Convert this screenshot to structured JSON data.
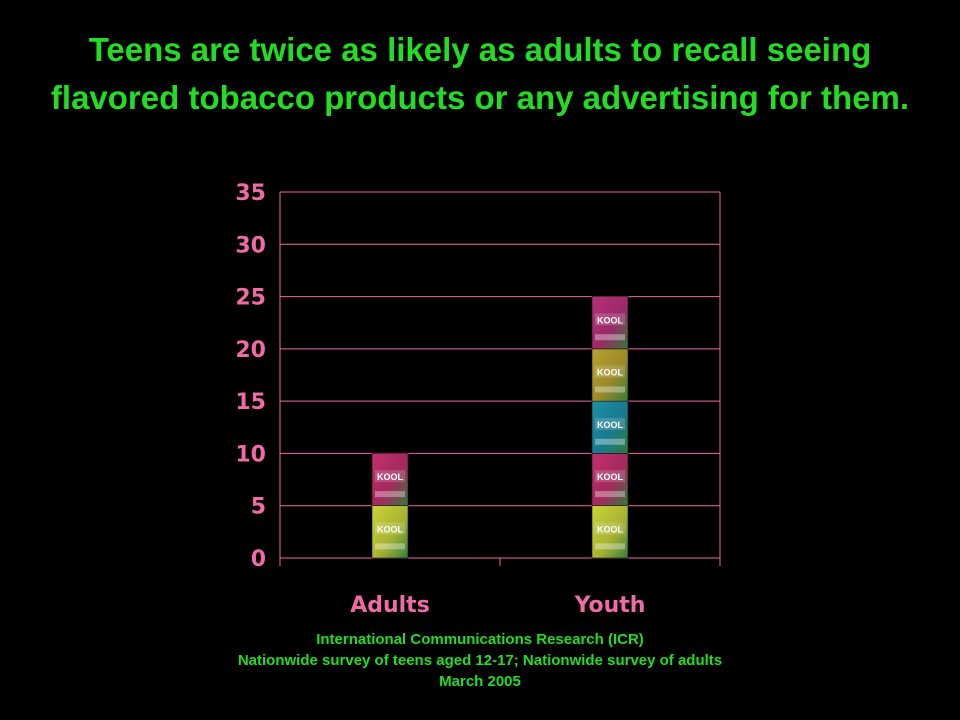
{
  "title": "Teens are twice as likely as adults to recall seeing flavored tobacco products or any advertising for them.",
  "chart_data": {
    "type": "bar",
    "categories": [
      "Adults",
      "Youth"
    ],
    "values": [
      10,
      25
    ],
    "ylim": [
      0,
      35
    ],
    "yticks": [
      0,
      5,
      10,
      15,
      20,
      25,
      30,
      35
    ],
    "grid": true,
    "bar_fill": "stacked KOOL flavored cigarette pack images",
    "pack_units": 5
  },
  "pack_brand": "KOOL",
  "colors": {
    "background": "#000000",
    "title": "#22dd22",
    "axis_labels": "#f06aa6",
    "gridlines": "#f06aa6",
    "source_text": "#22dd22",
    "pack_themes": [
      "#c8d43a",
      "#c2306e",
      "#1d8fa8",
      "#b8a22e",
      "#b8307a"
    ]
  },
  "source": {
    "line1": "International Communications Research (ICR)",
    "line2": "Nationwide survey of teens aged 12-17; Nationwide survey of adults",
    "line3": "March 2005"
  }
}
